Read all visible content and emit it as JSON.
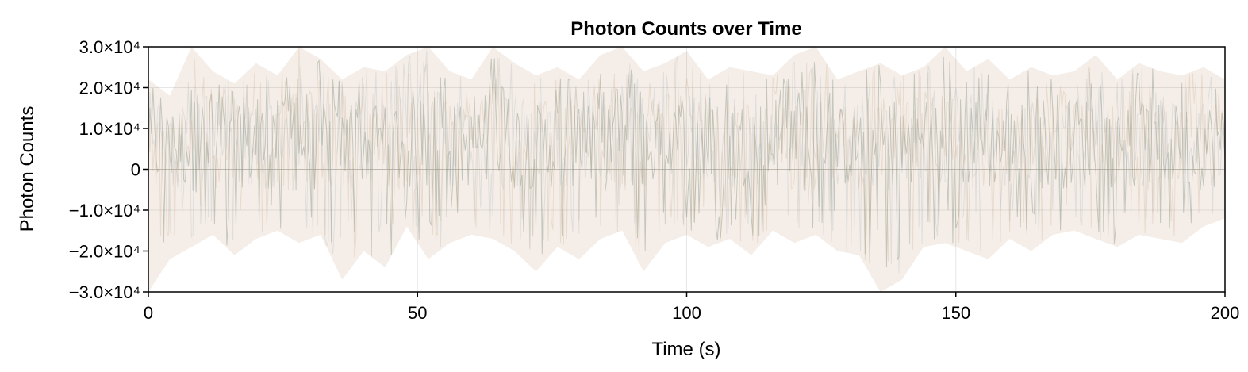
{
  "chart_data": {
    "type": "area",
    "title": "Photon Counts over Time",
    "xlabel": "Time (s)",
    "ylabel": "Photon Counts",
    "xlim": [
      0,
      200
    ],
    "ylim": [
      -30000,
      30000
    ],
    "x_ticks": [
      0,
      50,
      100,
      150,
      200
    ],
    "x_tick_labels": [
      "0",
      "50",
      "100",
      "150",
      "200"
    ],
    "y_ticks": [
      -30000,
      -20000,
      -10000,
      0,
      10000,
      20000,
      30000
    ],
    "y_tick_labels": [
      "−3.0×10⁴",
      "−2.0×10⁴",
      "−1.0×10⁴",
      "0",
      "1.0×10⁴",
      "2.0×10⁴",
      "3.0×10⁴"
    ],
    "grid": true,
    "legend": "none",
    "series_colors": [
      "#6e7f6a",
      "#c9a27e",
      "#9fb0b8"
    ],
    "x": [
      0,
      4,
      8,
      12,
      16,
      20,
      24,
      28,
      32,
      36,
      40,
      44,
      48,
      52,
      56,
      60,
      64,
      68,
      72,
      76,
      80,
      84,
      88,
      92,
      96,
      100,
      104,
      108,
      112,
      116,
      120,
      124,
      128,
      132,
      136,
      140,
      144,
      148,
      152,
      156,
      160,
      164,
      168,
      172,
      176,
      180,
      184,
      188,
      192,
      196,
      200
    ],
    "series": [
      {
        "upper": [
          22000,
          18000,
          30000,
          24000,
          21000,
          26000,
          23000,
          30000,
          27000,
          22000,
          25000,
          24000,
          28000,
          30000,
          24000,
          22000,
          30000,
          26000,
          23000,
          25000,
          22000,
          28000,
          30000,
          24000,
          26000,
          29000,
          22000,
          25000,
          24000,
          23000,
          28000,
          30000,
          22000,
          24000,
          26000,
          23000,
          25000,
          30000,
          24000,
          27000,
          22000,
          25000,
          23000,
          24000,
          28000,
          22000,
          26000,
          24000,
          23000,
          25000,
          22000
        ],
        "lower": [
          -30000,
          -22000,
          -19000,
          -16000,
          -21000,
          -17000,
          -15000,
          -18000,
          -16000,
          -27000,
          -20000,
          -24000,
          -14000,
          -22000,
          -18000,
          -16000,
          -17000,
          -20000,
          -25000,
          -19000,
          -22000,
          -17000,
          -15000,
          -25000,
          -18000,
          -16000,
          -19000,
          -17000,
          -21000,
          -15000,
          -18000,
          -16000,
          -20000,
          -21000,
          -30000,
          -27000,
          -19000,
          -18000,
          -20000,
          -22000,
          -17000,
          -20000,
          -16000,
          -15000,
          -17000,
          -19000,
          -16000,
          -17000,
          -18000,
          -14000,
          -12000
        ]
      }
    ]
  }
}
